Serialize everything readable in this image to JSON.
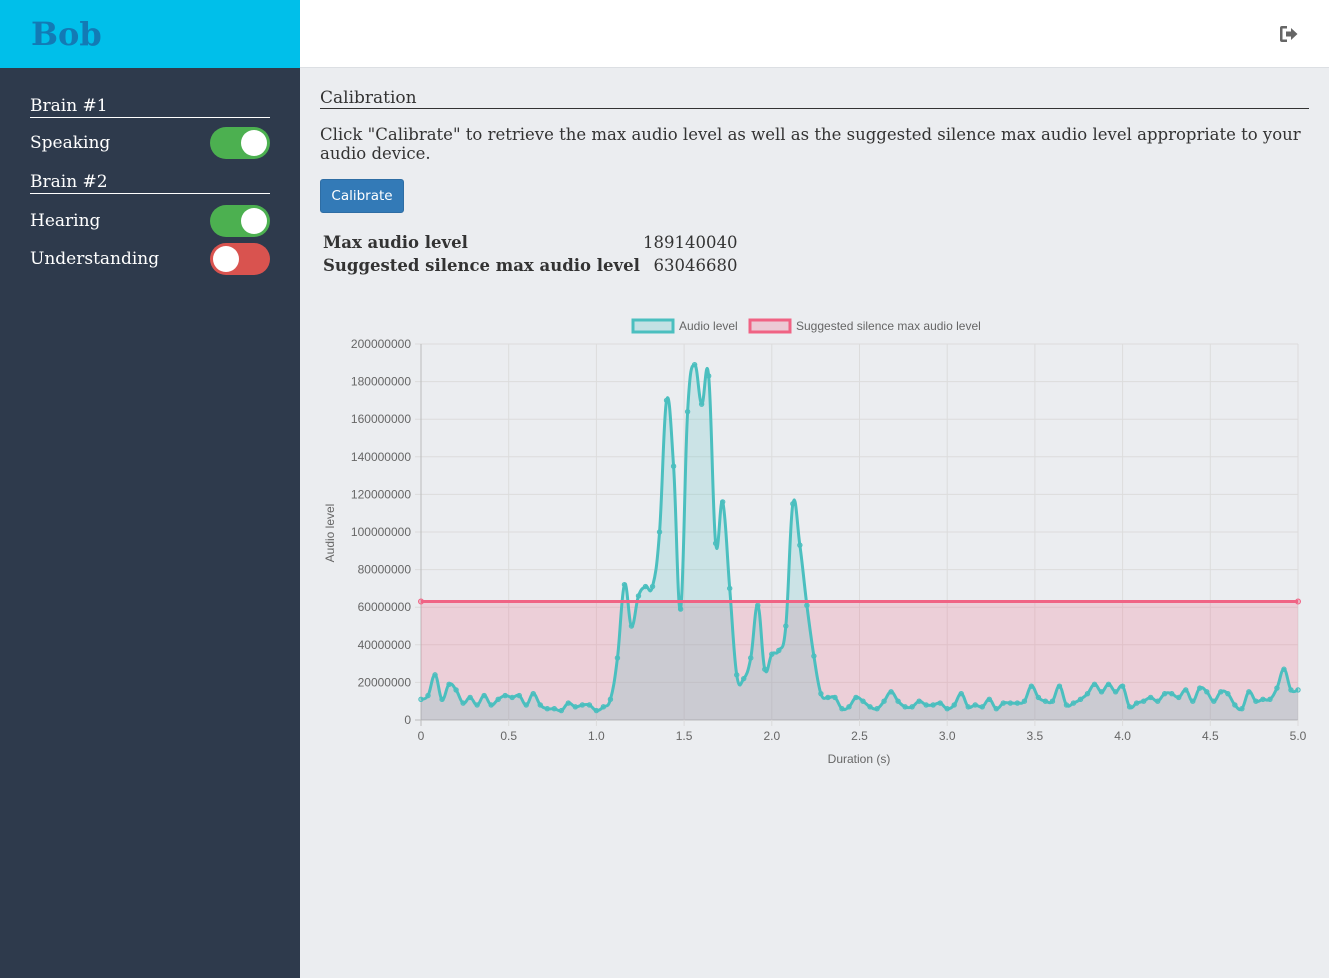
{
  "app": {
    "brand": "Bob"
  },
  "sidebar": {
    "sections": [
      {
        "title": "Brain #1",
        "items": [
          {
            "label": "Speaking",
            "state": "on"
          }
        ]
      },
      {
        "title": "Brain #2",
        "items": [
          {
            "label": "Hearing",
            "state": "on"
          },
          {
            "label": "Understanding",
            "state": "off"
          }
        ]
      }
    ]
  },
  "header": {
    "logout_icon": "sign-out-icon"
  },
  "calibration": {
    "title": "Calibration",
    "description": "Click \"Calibrate\" to retrieve the max audio level as well as the suggested silence max audio level appropriate to your audio device.",
    "button_label": "Calibrate",
    "max_audio_label": "Max audio level",
    "max_audio_value": "189140040",
    "silence_label": "Suggested silence max audio level",
    "silence_value": "63046680"
  },
  "colors": {
    "sidebar_bg": "#2e3a4c",
    "brand_bg": "#00bfea",
    "audio_line": "#4bbfbf",
    "silence_line": "#f06384",
    "toggle_on": "#4cb050",
    "toggle_off": "#d9534f"
  },
  "chart_data": {
    "type": "line",
    "xlabel": "Duration (s)",
    "ylabel": "Audio level",
    "xlim": [
      0,
      5.0
    ],
    "ylim": [
      0,
      200000000
    ],
    "x_ticks": [
      "0",
      "0.5",
      "1.0",
      "1.5",
      "2.0",
      "2.5",
      "3.0",
      "3.5",
      "4.0",
      "4.5",
      "5.0"
    ],
    "y_ticks": [
      "0",
      "20000000",
      "40000000",
      "60000000",
      "80000000",
      "100000000",
      "120000000",
      "140000000",
      "160000000",
      "180000000",
      "200000000"
    ],
    "grid": true,
    "legend_position": "top",
    "series": [
      {
        "name": "Audio level",
        "x": [
          0,
          0.04,
          0.08,
          0.12,
          0.16,
          0.2,
          0.24,
          0.28,
          0.32,
          0.36,
          0.4,
          0.44,
          0.48,
          0.52,
          0.56,
          0.6,
          0.64,
          0.68,
          0.72,
          0.76,
          0.8,
          0.84,
          0.88,
          0.92,
          0.96,
          1.0,
          1.04,
          1.08,
          1.12,
          1.16,
          1.2,
          1.24,
          1.28,
          1.32,
          1.36,
          1.4,
          1.44,
          1.48,
          1.52,
          1.56,
          1.6,
          1.64,
          1.68,
          1.72,
          1.76,
          1.8,
          1.84,
          1.88,
          1.92,
          1.96,
          2.0,
          2.04,
          2.08,
          2.12,
          2.16,
          2.2,
          2.24,
          2.28,
          2.32,
          2.36,
          2.4,
          2.44,
          2.48,
          2.52,
          2.56,
          2.6,
          2.64,
          2.68,
          2.72,
          2.76,
          2.8,
          2.84,
          2.88,
          2.92,
          2.96,
          3.0,
          3.04,
          3.08,
          3.12,
          3.16,
          3.2,
          3.24,
          3.28,
          3.32,
          3.36,
          3.4,
          3.44,
          3.48,
          3.52,
          3.56,
          3.6,
          3.64,
          3.68,
          3.72,
          3.76,
          3.8,
          3.84,
          3.88,
          3.92,
          3.96,
          4.0,
          4.04,
          4.08,
          4.12,
          4.16,
          4.2,
          4.24,
          4.28,
          4.32,
          4.36,
          4.4,
          4.44,
          4.48,
          4.52,
          4.56,
          4.6,
          4.64,
          4.68,
          4.72,
          4.76,
          4.8,
          4.84,
          4.88,
          4.92,
          4.96,
          5.0
        ],
        "values": [
          11000000,
          13000000,
          24000000,
          11000000,
          19000000,
          16000000,
          9000000,
          12000000,
          8000000,
          13000000,
          8000000,
          11000000,
          13000000,
          12000000,
          13000000,
          8000000,
          14000000,
          8000000,
          6000000,
          6000000,
          5000000,
          9000000,
          7000000,
          8000000,
          8000000,
          5000000,
          7000000,
          11000000,
          33000000,
          72000000,
          50000000,
          66000000,
          71000000,
          71000000,
          100000000,
          170000000,
          135000000,
          59000000,
          164000000,
          189000000,
          168000000,
          183000000,
          94000000,
          116000000,
          70000000,
          24000000,
          22000000,
          33000000,
          61000000,
          27000000,
          35000000,
          37000000,
          50000000,
          115000000,
          93000000,
          61000000,
          34000000,
          14000000,
          12000000,
          12000000,
          6000000,
          7000000,
          12000000,
          10000000,
          7000000,
          6000000,
          10000000,
          15000000,
          10000000,
          7000000,
          7000000,
          10000000,
          8000000,
          8000000,
          9000000,
          6000000,
          8000000,
          14000000,
          7000000,
          8000000,
          7000000,
          11000000,
          6000000,
          9000000,
          9000000,
          9000000,
          10000000,
          18000000,
          12000000,
          10000000,
          10000000,
          18000000,
          8000000,
          9000000,
          11000000,
          14000000,
          19000000,
          15000000,
          19000000,
          15000000,
          18000000,
          7000000,
          9000000,
          10000000,
          12000000,
          10000000,
          14000000,
          14000000,
          12000000,
          16000000,
          10000000,
          17000000,
          15000000,
          10000000,
          15000000,
          14000000,
          8000000,
          6000000,
          15000000,
          10000000,
          11000000,
          11000000,
          17000000,
          27000000,
          16000000,
          16000000
        ]
      },
      {
        "name": "Suggested silence max audio level",
        "x": [
          0,
          5.0
        ],
        "values": [
          63046680,
          63046680
        ]
      }
    ]
  }
}
